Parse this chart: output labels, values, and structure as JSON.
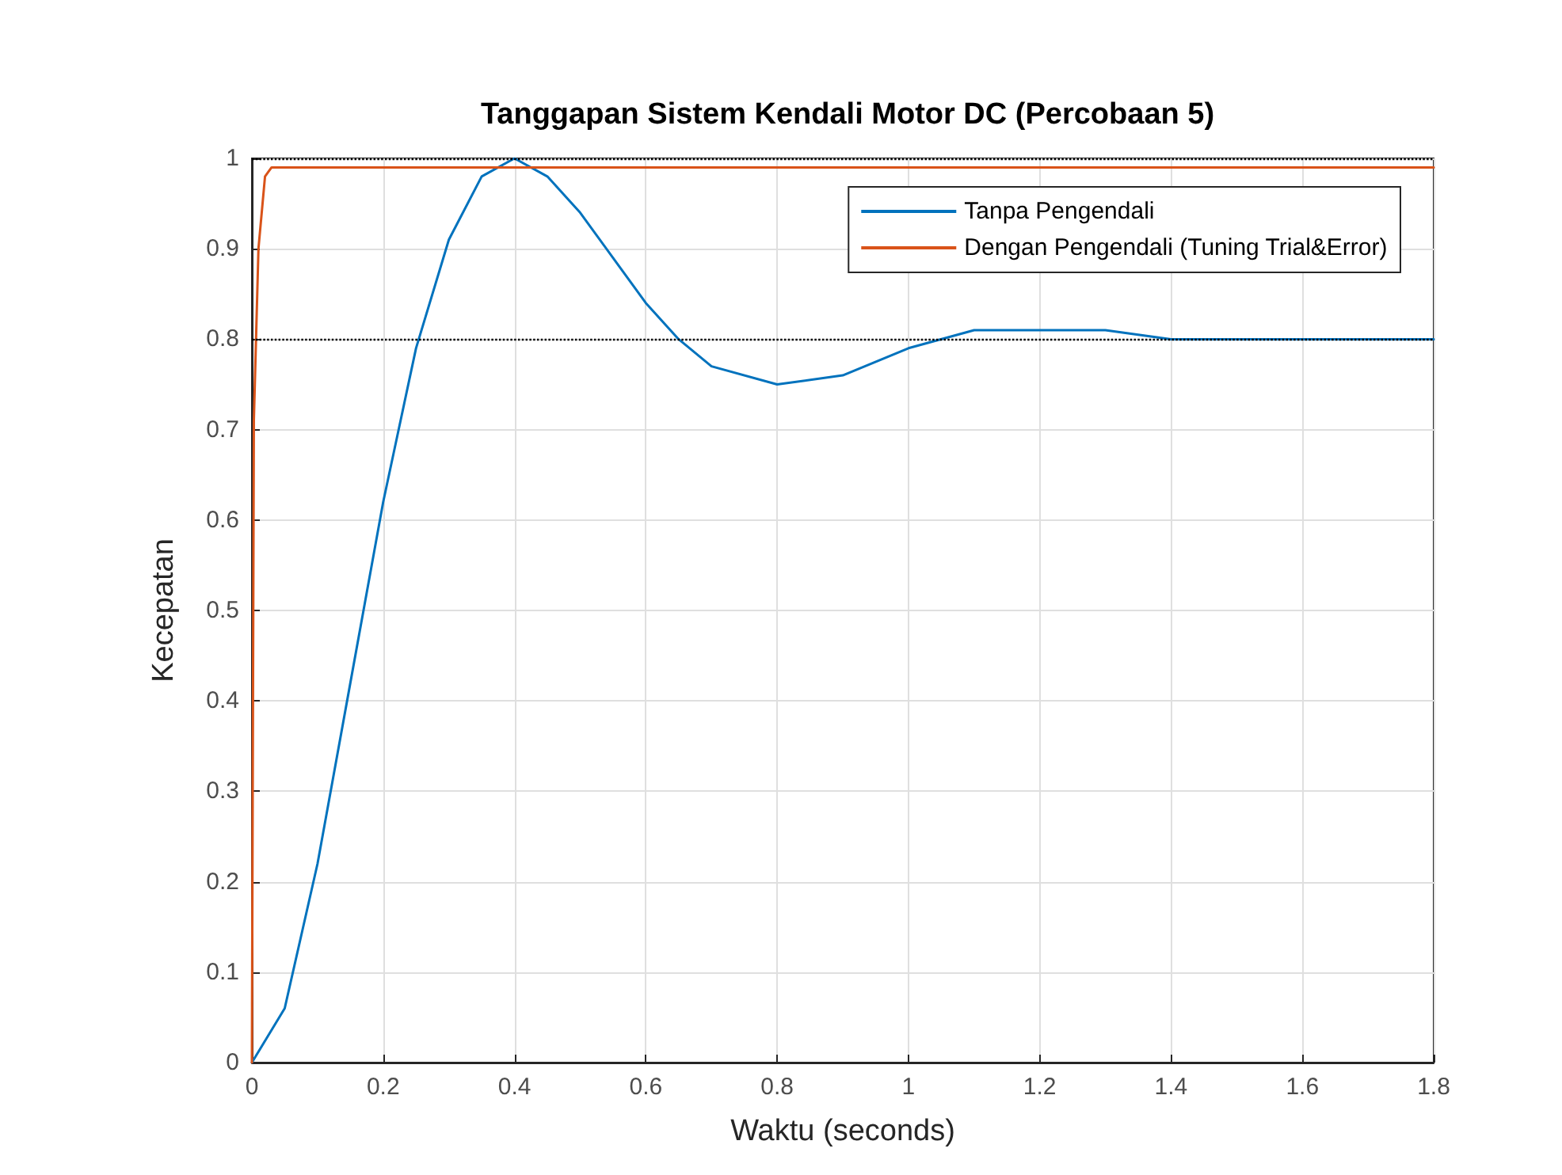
{
  "chart_data": {
    "type": "line",
    "title": "Tanggapan Sistem Kendali Motor DC (Percobaan 5)",
    "xlabel": "Waktu (seconds)",
    "ylabel": "Kecepatan",
    "series": [
      {
        "name": "Tanpa Pengendali",
        "color": "#0072bd",
        "x": [
          0,
          0.05,
          0.1,
          0.15,
          0.2,
          0.25,
          0.3,
          0.35,
          0.4,
          0.45,
          0.5,
          0.55,
          0.6,
          0.65,
          0.7,
          0.8,
          0.9,
          1.0,
          1.1,
          1.2,
          1.3,
          1.4,
          1.5,
          1.6,
          1.7,
          1.8
        ],
        "values": [
          0,
          0.06,
          0.22,
          0.42,
          0.62,
          0.79,
          0.91,
          0.98,
          1.0,
          0.98,
          0.94,
          0.89,
          0.84,
          0.8,
          0.77,
          0.75,
          0.76,
          0.79,
          0.81,
          0.81,
          0.81,
          0.8,
          0.8,
          0.8,
          0.8,
          0.8
        ]
      },
      {
        "name": "Dengan Pengendali (Tuning Trial&Error)",
        "color": "#d95319",
        "x": [
          0,
          0.003,
          0.01,
          0.02,
          0.03,
          1.8
        ],
        "values": [
          0,
          0.71,
          0.9,
          0.98,
          0.99,
          0.99
        ]
      }
    ],
    "xlim": [
      0,
      1.8
    ],
    "xticks": [
      0,
      0.2,
      0.4,
      0.6,
      0.8,
      1,
      1.2,
      1.4,
      1.6,
      1.8
    ],
    "ylim": [
      0,
      1
    ],
    "yticks": [
      0,
      0.1,
      0.2,
      0.3,
      0.4,
      0.5,
      0.6,
      0.7,
      0.8,
      0.9,
      1
    ],
    "ref_lines": [
      {
        "axis": "y",
        "value": 1,
        "color": "#000000",
        "line_style": "dotted"
      },
      {
        "axis": "y",
        "value": 0.8,
        "color": "#000000",
        "line_style": "dotted"
      }
    ],
    "grid": true,
    "legend": "top right",
    "marker": "none",
    "line_style": "solid"
  }
}
